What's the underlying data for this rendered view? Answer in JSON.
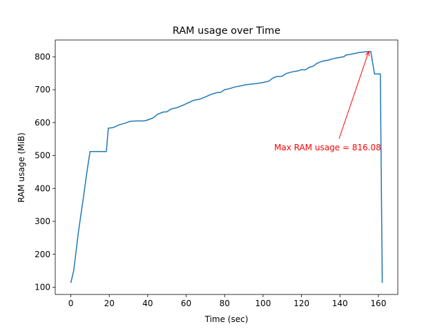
{
  "chart_data": {
    "type": "line",
    "title": "RAM usage over Time",
    "xlabel": "Time (sec)",
    "ylabel": "RAM usage (MiB)",
    "x": [
      0,
      1.5,
      4,
      6.5,
      8.5,
      10,
      12,
      14,
      16,
      18.5,
      19.5,
      22,
      25,
      28,
      31,
      34,
      38,
      40,
      43,
      45,
      48,
      50,
      52,
      55,
      58,
      61,
      64,
      67,
      70,
      73,
      76,
      78,
      80,
      83,
      85,
      88,
      91,
      94,
      97,
      100,
      103,
      105,
      107,
      110,
      112,
      115,
      118,
      120,
      122,
      124,
      126,
      128,
      131,
      134,
      137,
      140,
      142,
      143,
      147,
      150,
      153,
      156,
      158,
      161,
      162
    ],
    "values": [
      113,
      150,
      270,
      370,
      455,
      512,
      512,
      512,
      512,
      512,
      583,
      585,
      593,
      598,
      604,
      605,
      605,
      608,
      615,
      625,
      632,
      633,
      641,
      645,
      652,
      660,
      668,
      671,
      678,
      686,
      691,
      692,
      700,
      704,
      708,
      711,
      715,
      717,
      719,
      722,
      726,
      735,
      740,
      741,
      749,
      754,
      757,
      761,
      760,
      768,
      771,
      780,
      787,
      790,
      795,
      798,
      800,
      805,
      809,
      813,
      815,
      816.08,
      748,
      748,
      113
    ],
    "color": "#1f77b4",
    "xlim": [
      -8.1,
      170.1
    ],
    "ylim": [
      78,
      851
    ],
    "xticks": [
      0,
      20,
      40,
      60,
      80,
      100,
      120,
      140,
      160
    ],
    "yticks": [
      100,
      200,
      300,
      400,
      500,
      600,
      700,
      800
    ],
    "annotation": {
      "text": "Max RAM usage = 816.08",
      "x": 155,
      "y": 816.08,
      "color": "#ff0000"
    }
  }
}
